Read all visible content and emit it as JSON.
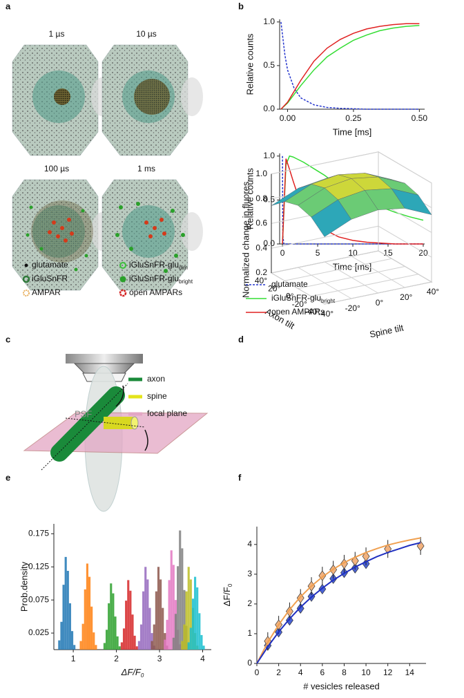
{
  "panel_labels": [
    "a",
    "b",
    "c",
    "d",
    "e",
    "f"
  ],
  "panel_a": {
    "timepoints": [
      "1 µs",
      "10 µs",
      "100 µs",
      "1 ms"
    ],
    "legend": [
      {
        "text": "glutamate"
      },
      {
        "text": "iGluSnFR"
      },
      {
        "text": "AMPAR"
      },
      {
        "text": "iGluSnFR-glu",
        "sub": "dim"
      },
      {
        "text": "iGluSnFR-glu",
        "sub": "bright"
      },
      {
        "text": "open AMPARs"
      }
    ]
  },
  "panel_c": {
    "psf": "PSF",
    "legend": [
      {
        "text": "axon",
        "color": "#1a8a3a"
      },
      {
        "text": "spine",
        "color": "#e4e41c"
      },
      {
        "text": "focal plane",
        "color": "#e3a6c4"
      }
    ]
  },
  "chart_data": [
    {
      "type": "line",
      "xlabel": "Time [ms]",
      "ylabel": "Relative counts",
      "xlim": [
        -0.03,
        0.52
      ],
      "xticks": [
        {
          "value": 0,
          "label": "0.00"
        },
        {
          "value": 0.25,
          "label": "0.25"
        },
        {
          "value": 0.5,
          "label": "0.50"
        }
      ],
      "ylim": [
        0,
        1.03
      ],
      "yticks": [
        {
          "value": 0,
          "label": "0.0"
        },
        {
          "value": 0.5,
          "label": "0.5"
        },
        {
          "value": 1,
          "label": "1.0"
        }
      ],
      "series": [
        {
          "name": "glutamate",
          "color": "#2233cc",
          "dash": true,
          "x": [
            -0.025,
            -0.01,
            0,
            0.025,
            0.05,
            0.1,
            0.15,
            0.2,
            0.3,
            0.4,
            0.5
          ],
          "values": [
            1,
            0.62,
            0.45,
            0.24,
            0.13,
            0.05,
            0.02,
            0.01,
            0,
            0,
            0
          ]
        },
        {
          "name": "iGluSnFR-glu",
          "name_sub": "bright",
          "color": "#33dd33",
          "x": [
            -0.025,
            0,
            0.05,
            0.1,
            0.15,
            0.2,
            0.25,
            0.3,
            0.35,
            0.4,
            0.45,
            0.5
          ],
          "values": [
            0,
            0.07,
            0.27,
            0.45,
            0.6,
            0.7,
            0.79,
            0.85,
            0.9,
            0.93,
            0.95,
            0.96
          ]
        },
        {
          "name": "open AMPARs",
          "color": "#e02020",
          "x": [
            -0.025,
            0,
            0.05,
            0.1,
            0.15,
            0.2,
            0.25,
            0.3,
            0.35,
            0.4,
            0.45,
            0.5
          ],
          "values": [
            0,
            0.08,
            0.33,
            0.55,
            0.7,
            0.8,
            0.87,
            0.92,
            0.95,
            0.97,
            0.98,
            0.98
          ]
        }
      ]
    },
    {
      "type": "line",
      "xlabel": "Time [ms]",
      "ylabel": "Relative counts",
      "xlim": [
        -0.4,
        20.2
      ],
      "xticks": [
        0,
        5,
        10,
        15,
        20
      ],
      "ylim": [
        0,
        1.03
      ],
      "yticks": [
        {
          "value": 0,
          "label": "0.0"
        },
        {
          "value": 0.5,
          "label": "0.5"
        },
        {
          "value": 1,
          "label": "1.0"
        }
      ],
      "series": [
        {
          "color": "#2233cc",
          "dash": true,
          "x": [
            0,
            0.05,
            0.2,
            20
          ],
          "values": [
            1,
            0.1,
            0,
            0
          ]
        },
        {
          "color": "#33dd33",
          "x": [
            0,
            0.5,
            1,
            1.5,
            2,
            3,
            4,
            5,
            6,
            7,
            8,
            10,
            12,
            14,
            16,
            18,
            20
          ],
          "values": [
            0,
            0.9,
            1,
            0.99,
            0.97,
            0.93,
            0.88,
            0.83,
            0.78,
            0.72,
            0.67,
            0.58,
            0.49,
            0.42,
            0.36,
            0.31,
            0.27
          ]
        },
        {
          "color": "#e02020",
          "x": [
            0,
            0.5,
            1,
            1.5,
            2,
            3,
            4,
            5,
            6,
            7,
            8,
            10,
            12,
            14,
            16,
            18,
            20
          ],
          "values": [
            0,
            0.97,
            0.85,
            0.72,
            0.6,
            0.45,
            0.33,
            0.24,
            0.17,
            0.12,
            0.08,
            0.04,
            0.02,
            0.01,
            0,
            0,
            0
          ]
        }
      ]
    },
    {
      "type": "surface",
      "zlabel": "Normalized change in fluores.",
      "xlabel": "Axon tilt",
      "ylabel": "Spine tilt",
      "x": [
        -40,
        -20,
        0,
        20,
        40
      ],
      "y": [
        -40,
        -20,
        0,
        20,
        40
      ],
      "z": [
        [
          0.744,
          0.84,
          0.872,
          0.84,
          0.744
        ],
        [
          0.84,
          0.936,
          0.968,
          0.936,
          0.84
        ],
        [
          0.872,
          0.968,
          1.0,
          0.968,
          0.872
        ],
        [
          0.84,
          0.936,
          0.968,
          0.936,
          0.84
        ],
        [
          0.744,
          0.84,
          0.872,
          0.84,
          0.744
        ]
      ],
      "xlim": [
        -40,
        40
      ],
      "xticks": [
        {
          "value": -40,
          "label": "-40°"
        },
        {
          "value": -20,
          "label": "-20°"
        },
        {
          "value": 0,
          "label": "0°"
        },
        {
          "value": 20,
          "label": "20°"
        },
        {
          "value": 40,
          "label": "40°"
        }
      ],
      "ylim": [
        -40,
        40
      ],
      "yticks": [
        {
          "value": -40,
          "label": "-40°"
        },
        {
          "value": -20,
          "label": "-20°"
        },
        {
          "value": 0,
          "label": "0°"
        },
        {
          "value": 20,
          "label": "20°"
        },
        {
          "value": 40,
          "label": "40°"
        }
      ],
      "zlim": [
        0.2,
        1.0
      ],
      "zticks": [
        0.2,
        0.4,
        0.6,
        0.8,
        {
          "value": 1,
          "label": "1.0"
        }
      ],
      "colormap": [
        "#3b3fcf",
        "#2b8fd0",
        "#2fbf9f",
        "#a8d84a",
        "#f2d52a"
      ]
    },
    {
      "type": "histogram",
      "xlabel": {
        "text": "ΔF/F",
        "sub": "0"
      },
      "ylabel": "Prob.density",
      "xlim": [
        0.55,
        4.2
      ],
      "xticks": [
        1,
        2,
        3,
        4
      ],
      "ylim": [
        0,
        0.19
      ],
      "yticks": [
        0.025,
        0.075,
        0.125,
        0.175
      ],
      "series": [
        {
          "color": "#1f77b4",
          "bins": [
            0.65,
            0.7,
            0.75,
            0.8,
            0.85,
            0.9,
            0.95,
            1.0,
            1.05
          ],
          "values": [
            0.014,
            0.042,
            0.098,
            0.14,
            0.119,
            0.07,
            0.028,
            0.007
          ]
        },
        {
          "color": "#ff7f0e",
          "bins": [
            1.15,
            1.2,
            1.25,
            1.3,
            1.35,
            1.4,
            1.45,
            1.5,
            1.55
          ],
          "values": [
            0.013,
            0.039,
            0.091,
            0.13,
            0.11,
            0.065,
            0.026,
            0.007
          ]
        },
        {
          "color": "#2ca02c",
          "bins": [
            1.7,
            1.75,
            1.8,
            1.85,
            1.9,
            1.95,
            2.0,
            2.05,
            2.1
          ],
          "values": [
            0.01,
            0.03,
            0.07,
            0.1,
            0.085,
            0.05,
            0.02,
            0.005
          ]
        },
        {
          "color": "#d62728",
          "bins": [
            2.1,
            2.15,
            2.2,
            2.25,
            2.3,
            2.35,
            2.4,
            2.45,
            2.5
          ],
          "values": [
            0.011,
            0.032,
            0.074,
            0.105,
            0.089,
            0.053,
            0.021,
            0.005
          ]
        },
        {
          "color": "#9467bd",
          "bins": [
            2.5,
            2.55,
            2.6,
            2.65,
            2.7,
            2.75,
            2.8,
            2.85,
            2.9
          ],
          "values": [
            0.013,
            0.038,
            0.088,
            0.125,
            0.106,
            0.063,
            0.025,
            0.006
          ]
        },
        {
          "color": "#8c564b",
          "bins": [
            2.8,
            2.85,
            2.9,
            2.95,
            3.0,
            3.05,
            3.1,
            3.15,
            3.2
          ],
          "values": [
            0.013,
            0.038,
            0.088,
            0.125,
            0.106,
            0.063,
            0.025,
            0.006
          ]
        },
        {
          "color": "#e377c2",
          "bins": [
            3.1,
            3.15,
            3.2,
            3.25,
            3.3,
            3.35,
            3.4,
            3.45,
            3.5
          ],
          "values": [
            0.015,
            0.045,
            0.105,
            0.15,
            0.128,
            0.075,
            0.03,
            0.008
          ]
        },
        {
          "color": "#7f7f7f",
          "bins": [
            3.3,
            3.35,
            3.4,
            3.45,
            3.5,
            3.55,
            3.6,
            3.65,
            3.7
          ],
          "values": [
            0.018,
            0.054,
            0.126,
            0.18,
            0.153,
            0.09,
            0.036,
            0.009
          ]
        },
        {
          "color": "#bcbd22",
          "bins": [
            3.5,
            3.55,
            3.6,
            3.65,
            3.7,
            3.75,
            3.8,
            3.85,
            3.9
          ],
          "values": [
            0.013,
            0.038,
            0.088,
            0.125,
            0.106,
            0.063,
            0.025,
            0.006
          ]
        },
        {
          "color": "#17becf",
          "bins": [
            3.65,
            3.7,
            3.75,
            3.8,
            3.85,
            3.9,
            3.95,
            4.0,
            4.05
          ],
          "values": [
            0.011,
            0.033,
            0.077,
            0.11,
            0.094,
            0.055,
            0.022,
            0.006
          ]
        }
      ]
    },
    {
      "type": "scatter",
      "xlabel": "# vesicles released",
      "ylabel": {
        "text": "ΔF/F",
        "sub": "0"
      },
      "xlim": [
        0,
        15.5
      ],
      "xticks": [
        0,
        2,
        4,
        6,
        8,
        10,
        12,
        14
      ],
      "ylim": [
        0,
        4.6
      ],
      "yticks": [
        0,
        1,
        2,
        3,
        4
      ],
      "series": [
        {
          "mode": "markers",
          "color": "#4a63d6",
          "x": [
            1,
            2,
            3,
            4,
            5,
            6,
            7,
            8,
            9,
            10
          ],
          "values": [
            0.6,
            1.05,
            1.45,
            1.85,
            2.25,
            2.5,
            2.85,
            3.05,
            3.2,
            3.35
          ]
        },
        {
          "mode": "markers",
          "color": "#f2b27e",
          "x": [
            1,
            2,
            3,
            4,
            5,
            6,
            7,
            8,
            9,
            10,
            12,
            15
          ],
          "values": [
            0.75,
            1.3,
            1.75,
            2.2,
            2.6,
            2.95,
            3.15,
            3.35,
            3.45,
            3.6,
            3.85,
            3.95
          ],
          "errors": [
            0.3,
            0.3,
            0.3,
            0.3,
            0.3,
            0.3,
            0.3,
            0.3,
            0.3,
            0.3,
            0.3,
            0.3
          ]
        },
        {
          "mode": "lines",
          "color": "#f0a050",
          "x": [
            0,
            1,
            2,
            3,
            4,
            5,
            6,
            7,
            8,
            9,
            10,
            11,
            12,
            13,
            14,
            15
          ],
          "values": [
            0,
            0.71,
            1.3,
            1.81,
            2.24,
            2.6,
            2.91,
            3.17,
            3.39,
            3.57,
            3.73,
            3.86,
            3.98,
            4.07,
            4.15,
            4.22
          ]
        },
        {
          "mode": "lines",
          "color": "#2030c0",
          "x": [
            0,
            1,
            2,
            3,
            4,
            5,
            6,
            7,
            8,
            9,
            10,
            11,
            12,
            13,
            14,
            15
          ],
          "values": [
            0,
            0.56,
            1.06,
            1.5,
            1.89,
            2.23,
            2.53,
            2.8,
            3.03,
            3.24,
            3.42,
            3.59,
            3.73,
            3.85,
            3.97,
            4.06
          ]
        }
      ]
    }
  ]
}
